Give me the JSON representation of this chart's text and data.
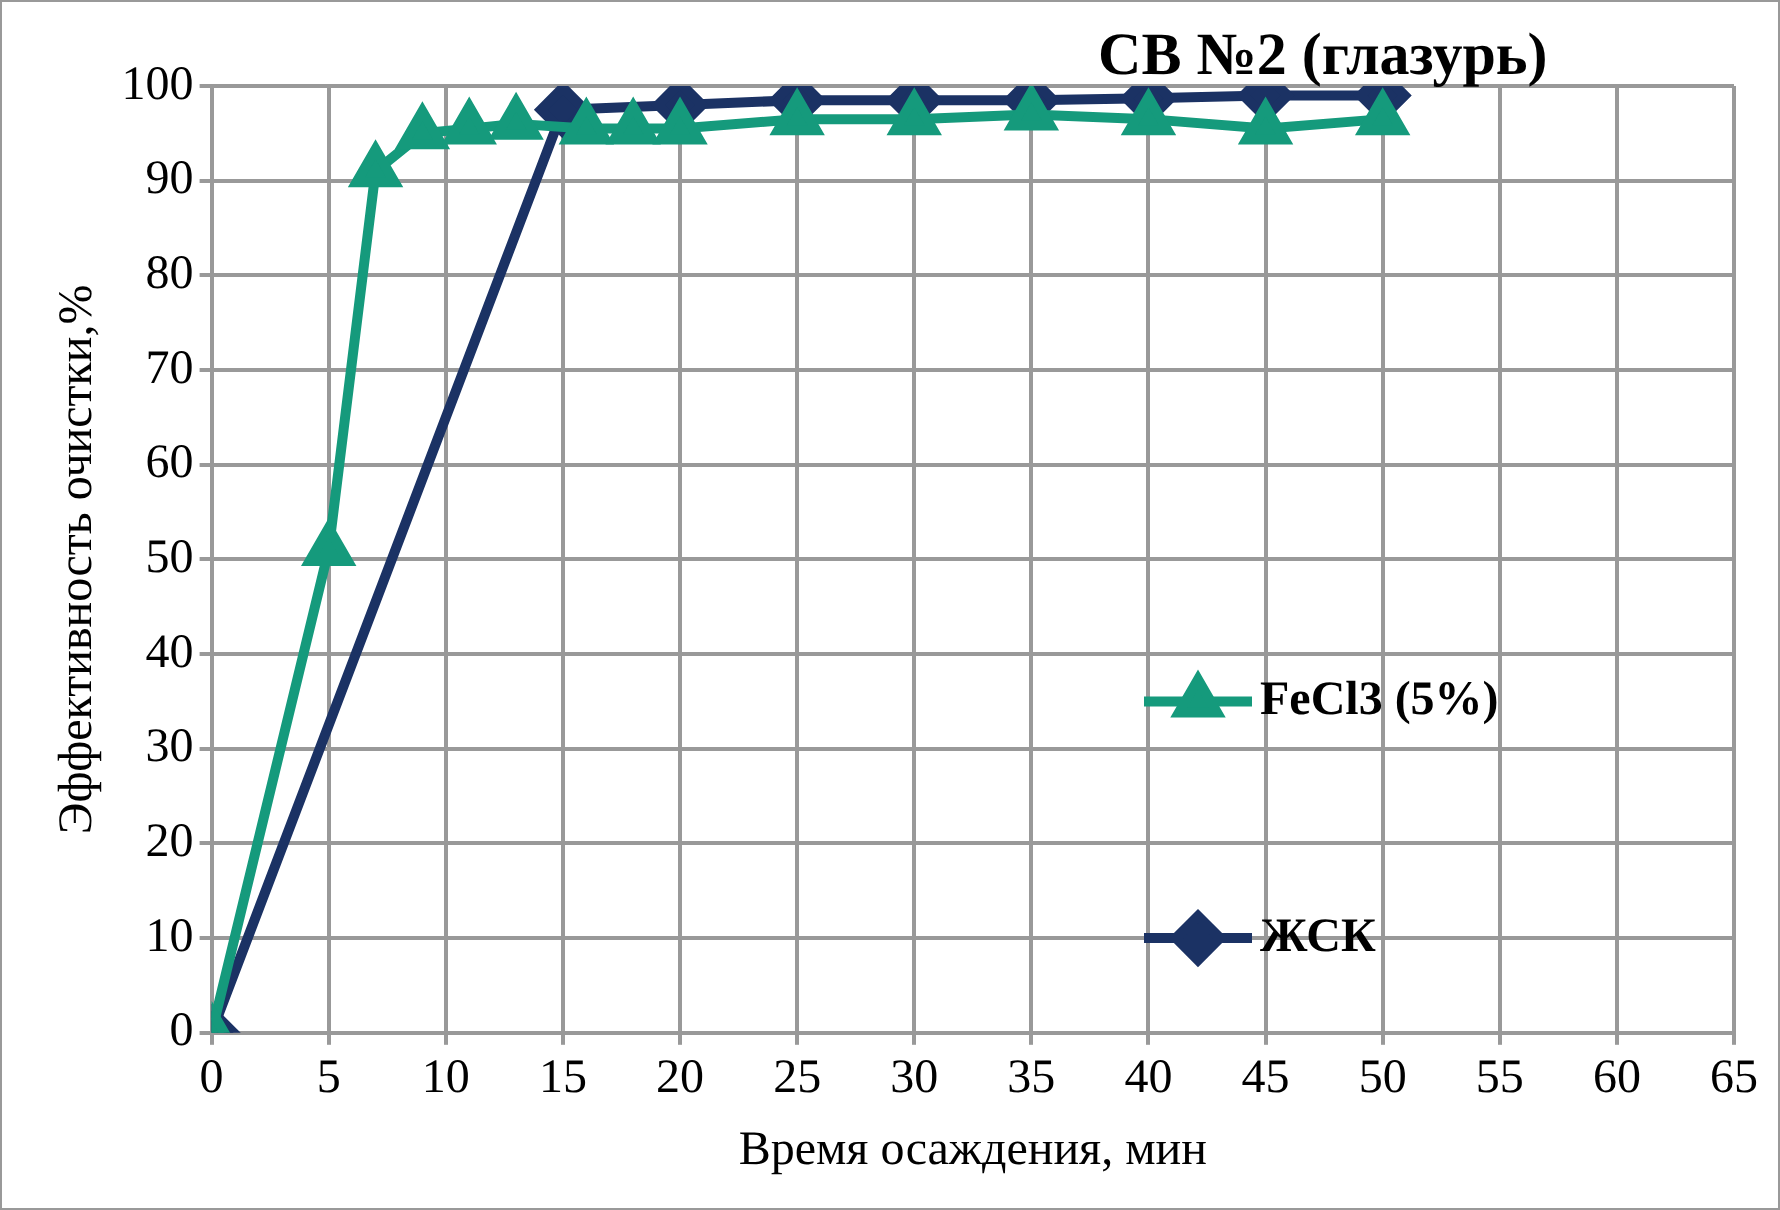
{
  "chart_data": {
    "type": "line",
    "title": "СВ №2 (глазурь)",
    "xlabel": "Время осаждения, мин",
    "ylabel": "Эффективность очистки,%",
    "xlim": [
      0,
      65
    ],
    "xticks": [
      0,
      5,
      10,
      15,
      20,
      25,
      30,
      35,
      40,
      45,
      50,
      55,
      60,
      65
    ],
    "ylim": [
      0,
      100
    ],
    "yticks": [
      0,
      10,
      20,
      30,
      40,
      50,
      60,
      70,
      80,
      90,
      100
    ],
    "grid": true,
    "legend": "right",
    "series": [
      {
        "name": "FeCl3 (5%)",
        "color": "#159a7c",
        "marker": "triangle",
        "x": [
          0,
          5,
          7,
          9,
          11,
          13,
          16,
          18,
          20,
          25,
          30,
          35,
          40,
          45,
          50
        ],
        "values": [
          0,
          51,
          91,
          95,
          95.5,
          96,
          95.5,
          95.5,
          95.5,
          96.5,
          96.5,
          97,
          96.5,
          95.5,
          96.5
        ]
      },
      {
        "name": "ЖСК",
        "color": "#1b3264",
        "marker": "diamond",
        "x": [
          0,
          15,
          20,
          25,
          30,
          35,
          40,
          45,
          50
        ],
        "values": [
          0,
          97.5,
          98,
          98.5,
          98.5,
          98.5,
          98.7,
          99,
          99
        ]
      }
    ]
  }
}
